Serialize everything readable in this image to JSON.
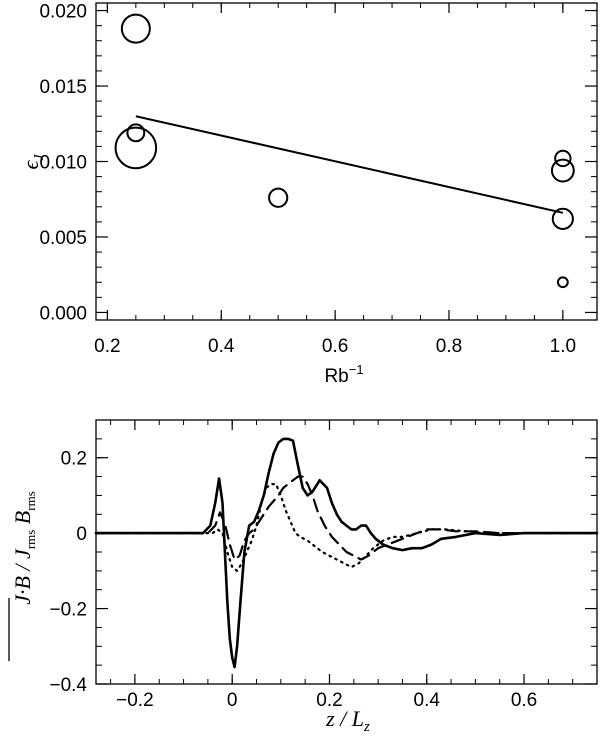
{
  "chart_data": [
    {
      "type": "scatter",
      "title": "",
      "xlabel": "Rb",
      "xlabel_sup": "−1",
      "ylabel": "ϵ",
      "ylabel_sub": "J",
      "xlim": [
        0.18,
        1.06
      ],
      "ylim": [
        -0.0005,
        0.0205
      ],
      "x_ticks": [
        0.2,
        0.4,
        0.6,
        0.8,
        1.0
      ],
      "x_tick_labels": [
        "0.2",
        "0.4",
        "0.6",
        "0.8",
        "1.0"
      ],
      "y_ticks": [
        0.0,
        0.005,
        0.01,
        0.015,
        0.02
      ],
      "y_tick_labels": [
        "0.000",
        "0.005",
        "0.010",
        "0.015",
        "0.020"
      ],
      "points": [
        {
          "x": 0.25,
          "y": 0.0188,
          "size": 1.0
        },
        {
          "x": 0.25,
          "y": 0.0119,
          "size": 0.6
        },
        {
          "x": 0.25,
          "y": 0.0109,
          "size": 1.45
        },
        {
          "x": 0.5,
          "y": 0.0076,
          "size": 0.65
        },
        {
          "x": 1.0,
          "y": 0.0102,
          "size": 0.55
        },
        {
          "x": 1.0,
          "y": 0.0094,
          "size": 0.78
        },
        {
          "x": 1.0,
          "y": 0.0062,
          "size": 0.72
        },
        {
          "x": 1.0,
          "y": 0.002,
          "size": 0.35
        }
      ],
      "fit_line": [
        {
          "x": 0.25,
          "y": 0.013
        },
        {
          "x": 1.0,
          "y": 0.0066
        }
      ]
    },
    {
      "type": "line",
      "title": "",
      "xlabel": "z / L",
      "xlabel_sub": "z",
      "ylabel": "J·B / J",
      "ylabel_rms1": "rms",
      "ylabel_mid": " B",
      "ylabel_rms2": "rms",
      "xlim": [
        -0.28,
        0.75
      ],
      "ylim": [
        -0.4,
        0.3
      ],
      "x_ticks": [
        -0.2,
        0.0,
        0.2,
        0.4,
        0.6
      ],
      "x_tick_labels": [
        "−0.2",
        "0",
        "0.2",
        "0.4",
        "0.6"
      ],
      "y_ticks": [
        -0.4,
        -0.2,
        0.0,
        0.2
      ],
      "y_tick_labels": [
        "−0.4",
        "−0.2",
        "0",
        "0.2"
      ],
      "series": [
        {
          "style": "solid",
          "x": [
            -0.28,
            -0.06,
            -0.045,
            -0.035,
            -0.027,
            -0.02,
            -0.015,
            -0.01,
            -0.005,
            0.0,
            0.005,
            0.01,
            0.017,
            0.025,
            0.035,
            0.045,
            0.055,
            0.065,
            0.075,
            0.085,
            0.095,
            0.105,
            0.115,
            0.125,
            0.135,
            0.145,
            0.155,
            0.165,
            0.18,
            0.195,
            0.205,
            0.215,
            0.225,
            0.235,
            0.245,
            0.255,
            0.265,
            0.275,
            0.285,
            0.295,
            0.31,
            0.33,
            0.35,
            0.37,
            0.39,
            0.41,
            0.43,
            0.46,
            0.5,
            0.55,
            0.6,
            0.65,
            0.75
          ],
          "y": [
            0.0,
            0.0,
            0.02,
            0.08,
            0.145,
            0.08,
            -0.05,
            -0.18,
            -0.28,
            -0.33,
            -0.355,
            -0.3,
            -0.18,
            -0.05,
            0.02,
            0.03,
            0.06,
            0.1,
            0.16,
            0.21,
            0.24,
            0.25,
            0.25,
            0.245,
            0.18,
            0.12,
            0.1,
            0.11,
            0.14,
            0.12,
            0.08,
            0.05,
            0.03,
            0.02,
            0.01,
            0.01,
            0.02,
            0.02,
            0.0,
            -0.015,
            -0.03,
            -0.04,
            -0.045,
            -0.04,
            -0.04,
            -0.03,
            -0.015,
            -0.01,
            0.0,
            -0.005,
            0.0,
            0.0,
            0.0
          ]
        },
        {
          "style": "dashed",
          "x": [
            -0.28,
            -0.05,
            -0.035,
            -0.025,
            -0.015,
            -0.005,
            0.005,
            0.015,
            0.025,
            0.035,
            0.045,
            0.055,
            0.065,
            0.075,
            0.085,
            0.095,
            0.105,
            0.115,
            0.125,
            0.135,
            0.145,
            0.155,
            0.165,
            0.175,
            0.19,
            0.205,
            0.22,
            0.235,
            0.25,
            0.265,
            0.28,
            0.3,
            0.32,
            0.34,
            0.36,
            0.38,
            0.4,
            0.43,
            0.46,
            0.5,
            0.55,
            0.6,
            0.75
          ],
          "y": [
            0.0,
            0.0,
            0.02,
            0.055,
            0.025,
            -0.03,
            -0.07,
            -0.06,
            -0.02,
            0.0,
            0.01,
            0.03,
            0.05,
            0.07,
            0.085,
            0.1,
            0.12,
            0.13,
            0.14,
            0.15,
            0.15,
            0.13,
            0.1,
            0.06,
            0.02,
            -0.01,
            -0.03,
            -0.05,
            -0.06,
            -0.07,
            -0.06,
            -0.04,
            -0.03,
            -0.02,
            -0.01,
            0.0,
            0.01,
            0.01,
            0.005,
            0.005,
            0.0,
            0.0,
            0.0
          ]
        },
        {
          "style": "dotted",
          "x": [
            -0.28,
            -0.05,
            -0.04,
            -0.03,
            -0.02,
            -0.01,
            0.0,
            0.01,
            0.02,
            0.03,
            0.04,
            0.05,
            0.06,
            0.07,
            0.08,
            0.09,
            0.1,
            0.11,
            0.12,
            0.13,
            0.14,
            0.155,
            0.17,
            0.185,
            0.2,
            0.215,
            0.23,
            0.245,
            0.26,
            0.275,
            0.29,
            0.31,
            0.33,
            0.35,
            0.38,
            0.41,
            0.44,
            0.48,
            0.52,
            0.58,
            0.75
          ],
          "y": [
            0.0,
            0.0,
            0.0,
            0.01,
            0.0,
            -0.05,
            -0.09,
            -0.1,
            -0.08,
            -0.05,
            -0.02,
            0.02,
            0.08,
            0.12,
            0.13,
            0.13,
            0.1,
            0.06,
            0.03,
            0.0,
            -0.01,
            -0.02,
            -0.035,
            -0.05,
            -0.06,
            -0.07,
            -0.08,
            -0.09,
            -0.08,
            -0.06,
            -0.04,
            -0.02,
            -0.01,
            -0.01,
            0.0,
            0.01,
            0.01,
            0.005,
            0.0,
            0.0,
            0.0
          ]
        }
      ]
    }
  ]
}
